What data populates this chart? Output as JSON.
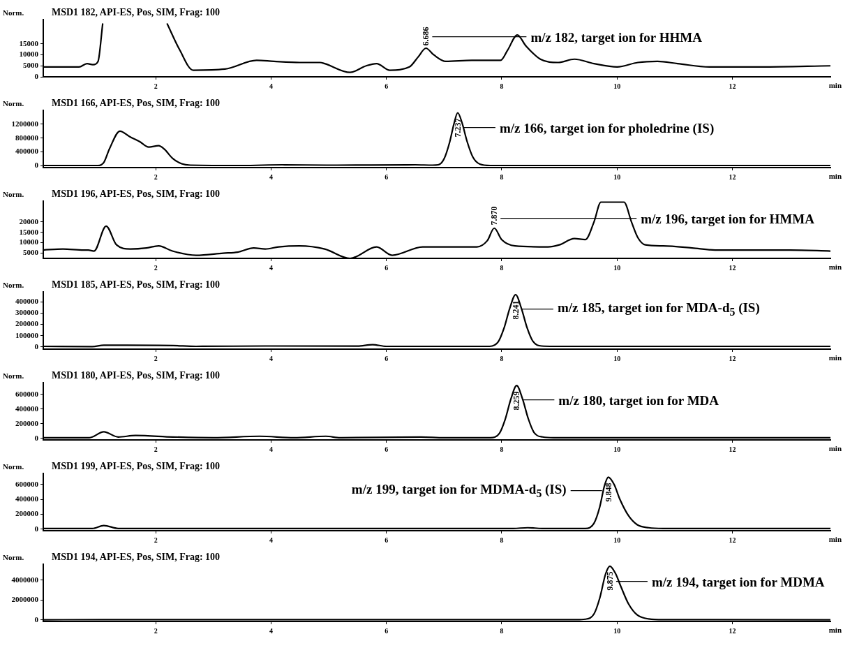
{
  "chart_data": [
    {
      "type": "line",
      "title": "MSD1 182, API-ES, Pos, SIM, Frag: 100",
      "ylabel": "Norm.",
      "xlabel": "min",
      "color": "#000000",
      "xlim": [
        0.05,
        13.7
      ],
      "xticks": [
        2,
        4,
        6,
        8,
        10,
        12
      ],
      "ylim": [
        0,
        26000
      ],
      "yticks": [
        0,
        5000,
        10000,
        15000
      ],
      "x": [
        0.05,
        0.39,
        0.67,
        0.81,
        0.91,
        1.0,
        1.08,
        1.6,
        2.2,
        2.41,
        2.65,
        3.2,
        3.75,
        4.05,
        4.5,
        4.85,
        4.93,
        5.37,
        5.65,
        5.83,
        6.06,
        6.4,
        6.55,
        6.686,
        6.82,
        7.03,
        7.48,
        7.98,
        8.1,
        8.27,
        8.42,
        8.67,
        8.98,
        9.26,
        9.6,
        10.0,
        10.36,
        10.7,
        11.05,
        11.6,
        12.5,
        13.7
      ],
      "values": [
        4500,
        4500,
        4500,
        6000,
        5500,
        7000,
        24000,
        null,
        24000,
        12500,
        3000,
        3500,
        7500,
        7000,
        6500,
        6500,
        6000,
        2000,
        5000,
        6000,
        3000,
        4500,
        9000,
        13000,
        10000,
        7000,
        7500,
        7500,
        12000,
        19000,
        14000,
        8000,
        6500,
        8000,
        6000,
        4500,
        6500,
        7000,
        6000,
        4500,
        4500,
        5000
      ],
      "annotations": [
        {
          "text": "6.686",
          "x": 6.686,
          "y": 13000
        },
        "m/z 182, target ion for HHMA"
      ]
    },
    {
      "type": "line",
      "title": "MSD1 166, API-ES, Pos, SIM, Frag: 100",
      "ylabel": "Norm.",
      "xlabel": "min",
      "color": "#000000",
      "xlim": [
        0.05,
        13.7
      ],
      "xticks": [
        2,
        4,
        6,
        8,
        10,
        12
      ],
      "ylim": [
        -50000,
        1600000
      ],
      "yticks": [
        0,
        400000,
        800000,
        1200000
      ],
      "x": [
        0.05,
        1.0,
        1.1,
        1.2,
        1.38,
        1.55,
        1.72,
        1.88,
        2.05,
        2.15,
        2.29,
        2.45,
        2.6,
        3.5,
        4.2,
        5.0,
        6.5,
        6.8,
        6.9,
        7.0,
        7.1,
        7.17,
        7.237,
        7.31,
        7.4,
        7.5,
        7.62,
        7.8,
        13.7
      ],
      "values": [
        10000,
        10000,
        100000,
        500000,
        1000000,
        840000,
        700000,
        540000,
        580000,
        480000,
        220000,
        60000,
        20000,
        10000,
        30000,
        20000,
        30000,
        20000,
        30000,
        200000,
        700000,
        1200000,
        1530000,
        1250000,
        700000,
        250000,
        50000,
        10000,
        10000
      ],
      "annotations": [
        {
          "text": "7.237",
          "x": 7.237,
          "y": 1530000
        },
        "m/z 166, target ion for pholedrine (IS)"
      ]
    },
    {
      "type": "line",
      "title": "MSD1 196, API-ES, Pos, SIM, Frag: 100",
      "ylabel": "Norm.",
      "xlabel": "min",
      "color": "#000000",
      "xlim": [
        0.05,
        13.7
      ],
      "xticks": [
        2,
        4,
        6,
        8,
        10,
        12
      ],
      "ylim": [
        2500,
        30000
      ],
      "yticks": [
        5000,
        10000,
        15000,
        20000
      ],
      "x": [
        0.05,
        0.39,
        0.75,
        0.83,
        0.93,
        1.14,
        1.32,
        1.56,
        1.84,
        2.05,
        2.29,
        2.7,
        3.17,
        3.42,
        3.7,
        3.9,
        4.13,
        4.49,
        4.93,
        5.37,
        5.83,
        6.1,
        6.63,
        7.0,
        7.57,
        7.75,
        7.87,
        8.0,
        8.23,
        8.8,
        9.0,
        9.26,
        9.45,
        9.6,
        9.72,
        10.12,
        10.25,
        10.36,
        10.49,
        10.8,
        11.3,
        11.7,
        12.5,
        13.0,
        13.7
      ],
      "values": [
        6500,
        7000,
        6500,
        6500,
        6000,
        18000,
        9000,
        7000,
        7500,
        8500,
        6000,
        4000,
        5000,
        5500,
        7500,
        7000,
        8000,
        8500,
        7000,
        2500,
        8000,
        4000,
        8000,
        8000,
        8000,
        11000,
        17000,
        11500,
        8500,
        8000,
        9000,
        12000,
        11500,
        20000,
        29500,
        29500,
        20000,
        12500,
        9000,
        8500,
        7500,
        6500,
        6500,
        6500,
        6000
      ],
      "annotations": [
        {
          "text": "7.870",
          "x": 7.87,
          "y": 17000
        },
        "m/z 196, target ion for HMMA"
      ]
    },
    {
      "type": "line",
      "title": "MSD1 185, API-ES, Pos, SIM, Frag: 100",
      "ylabel": "Norm.",
      "xlabel": "min",
      "color": "#000000",
      "xlim": [
        0.05,
        13.7
      ],
      "xticks": [
        2,
        4,
        6,
        8,
        10,
        12
      ],
      "ylim": [
        -20000,
        490000
      ],
      "yticks": [
        0,
        100000,
        200000,
        300000,
        400000
      ],
      "x": [
        0.05,
        0.9,
        1.1,
        1.5,
        2.3,
        2.7,
        4.0,
        5.5,
        5.76,
        6.0,
        7.79,
        7.94,
        8.04,
        8.14,
        8.241,
        8.34,
        8.44,
        8.54,
        8.69,
        8.9,
        13.7
      ],
      "values": [
        5000,
        3000,
        15000,
        15000,
        12000,
        5000,
        8000,
        7000,
        20000,
        5000,
        5000,
        46000,
        167000,
        345000,
        465000,
        345000,
        170000,
        50000,
        8000,
        5000,
        5000
      ],
      "annotations": [
        {
          "text": "8.241",
          "x": 8.241,
          "y": 465000
        },
        "m/z 185, target ion for MDA-d$_{5}$ (IS)"
      ]
    },
    {
      "type": "line",
      "title": "MSD1 180, API-ES, Pos, SIM, Frag: 100",
      "ylabel": "Norm.",
      "xlabel": "min",
      "color": "#000000",
      "xlim": [
        0.05,
        13.7
      ],
      "xticks": [
        2,
        4,
        6,
        8,
        10,
        12
      ],
      "ylim": [
        -20000,
        760000
      ],
      "yticks": [
        0,
        200000,
        400000,
        600000
      ],
      "x": [
        0.05,
        0.85,
        1.1,
        1.35,
        1.65,
        2.3,
        3.0,
        3.8,
        4.4,
        4.95,
        5.2,
        6.6,
        7.0,
        7.8,
        7.96,
        8.06,
        8.16,
        8.259,
        8.36,
        8.46,
        8.56,
        8.71,
        8.9,
        13.7
      ],
      "values": [
        10000,
        10000,
        90000,
        20000,
        40000,
        20000,
        10000,
        30000,
        10000,
        30000,
        10000,
        20000,
        10000,
        10000,
        70000,
        260000,
        540000,
        720000,
        540000,
        270000,
        80000,
        20000,
        10000,
        10000
      ],
      "annotations": [
        {
          "text": "8.259",
          "x": 8.259,
          "y": 720000
        },
        "m/z 180, target ion for MDA"
      ]
    },
    {
      "type": "line",
      "title": "MSD1 199, API-ES, Pos, SIM, Frag: 100",
      "ylabel": "Norm.",
      "xlabel": "min",
      "color": "#000000",
      "xlim": [
        0.05,
        13.7
      ],
      "xticks": [
        2,
        4,
        6,
        8,
        10,
        12
      ],
      "ylim": [
        -20000,
        750000
      ],
      "yticks": [
        0,
        200000,
        400000,
        600000
      ],
      "x": [
        0.05,
        0.9,
        1.1,
        1.35,
        3.0,
        6.0,
        8.2,
        8.45,
        8.7,
        9.3,
        9.45,
        9.6,
        9.7,
        9.78,
        9.848,
        9.95,
        10.05,
        10.2,
        10.35,
        10.55,
        10.8,
        13.7
      ],
      "values": [
        10000,
        10000,
        50000,
        10000,
        10000,
        10000,
        10000,
        20000,
        10000,
        10000,
        10000,
        80000,
        300000,
        580000,
        700000,
        600000,
        400000,
        180000,
        60000,
        20000,
        10000,
        10000
      ],
      "annotations": [
        {
          "text": "9.848",
          "x": 9.848,
          "y": 700000
        },
        "m/z 199, target ion for MDMA-d$_{5}$ (IS)"
      ]
    },
    {
      "type": "line",
      "title": "MSD1 194, API-ES, Pos, SIM, Frag: 100",
      "ylabel": "Norm.",
      "xlabel": "min",
      "color": "#000000",
      "xlim": [
        0.05,
        13.7
      ],
      "xticks": [
        2,
        4,
        6,
        8,
        10,
        12
      ],
      "ylim": [
        -150000,
        5600000
      ],
      "yticks": [
        0,
        2000000,
        4000000
      ],
      "x": [
        0.05,
        1.1,
        9.3,
        9.45,
        9.6,
        9.7,
        9.8,
        9.875,
        9.97,
        10.07,
        10.2,
        10.35,
        10.55,
        10.8,
        13.7
      ],
      "values": [
        20000,
        30000,
        30000,
        80000,
        600000,
        2200000,
        4600000,
        5400000,
        4700000,
        3300000,
        1600000,
        500000,
        100000,
        30000,
        20000
      ],
      "annotations": [
        {
          "text": "9.875",
          "x": 9.875,
          "y": 5400000
        },
        "m/z 194, target ion for MDMA"
      ]
    }
  ]
}
